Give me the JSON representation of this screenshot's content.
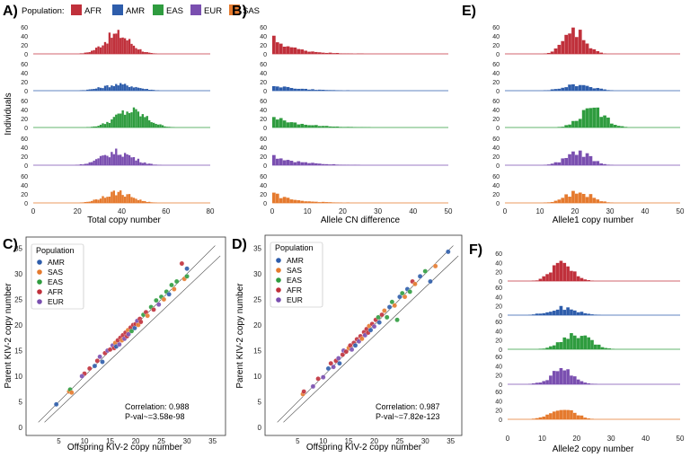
{
  "colors": {
    "AFR": "#c0303b",
    "AMR": "#2e5dab",
    "EAS": "#2f9c3f",
    "EUR": "#7a4fb0",
    "SAS": "#e57a2e"
  },
  "legend": {
    "title": "Population:",
    "items": [
      "AFR",
      "AMR",
      "EAS",
      "EUR",
      "SAS"
    ]
  },
  "scatter_legend_titles": {
    "C": "Population",
    "D": "Population"
  },
  "chart_data": [
    {
      "panel": "A",
      "label": "A)",
      "type": "histogram-stack",
      "xlabel": "Total copy number",
      "ylabel": "Individuals",
      "xlim": [
        0,
        80
      ],
      "xticks": [
        0,
        20,
        40,
        60,
        80
      ],
      "ylim": [
        0,
        60
      ],
      "yticks": [
        0,
        20,
        40,
        60
      ],
      "series": [
        {
          "name": "AFR",
          "center": 38,
          "sd": 6,
          "peak": 45
        },
        {
          "name": "AMR",
          "center": 39,
          "sd": 7.5,
          "peak": 14
        },
        {
          "name": "EAS",
          "center": 44,
          "sd": 7,
          "peak": 38
        },
        {
          "name": "EUR",
          "center": 38,
          "sd": 7,
          "peak": 30
        },
        {
          "name": "SAS",
          "center": 38,
          "sd": 6.5,
          "peak": 24
        }
      ]
    },
    {
      "panel": "B",
      "label": "B)",
      "type": "histogram-stack",
      "xlabel": "Allele CN difference",
      "ylabel": "",
      "xlim": [
        0,
        50
      ],
      "xticks": [
        0,
        10,
        20,
        30,
        40,
        50
      ],
      "ylim": [
        0,
        60
      ],
      "yticks": [
        0,
        20,
        40,
        60
      ],
      "series": [
        {
          "name": "AFR",
          "decay": 6,
          "peak": 38
        },
        {
          "name": "AMR",
          "decay": 7,
          "peak": 14
        },
        {
          "name": "EAS",
          "decay": 7,
          "peak": 28
        },
        {
          "name": "EUR",
          "decay": 7,
          "peak": 24
        },
        {
          "name": "SAS",
          "decay": 6,
          "peak": 22
        }
      ]
    },
    {
      "panel": "E",
      "label": "E)",
      "type": "histogram-stack",
      "xlabel": "Allele1 copy number",
      "ylabel": "",
      "xlim": [
        0,
        50
      ],
      "xticks": [
        0,
        10,
        20,
        30,
        40,
        50
      ],
      "ylim": [
        0,
        60
      ],
      "yticks": [
        0,
        20,
        40,
        60
      ],
      "series": [
        {
          "name": "AFR",
          "center": 20,
          "sd": 3,
          "peak": 55
        },
        {
          "name": "AMR",
          "center": 21,
          "sd": 4,
          "peak": 14
        },
        {
          "name": "EAS",
          "center": 25,
          "sd": 3.5,
          "peak": 45
        },
        {
          "name": "EUR",
          "center": 21,
          "sd": 3.5,
          "peak": 30
        },
        {
          "name": "SAS",
          "center": 21,
          "sd": 3.5,
          "peak": 26
        }
      ]
    },
    {
      "panel": "F",
      "label": "F)",
      "type": "histogram-stack",
      "xlabel": "Allele2 copy number",
      "ylabel": "",
      "xlim": [
        0,
        50
      ],
      "xticks": [
        0,
        10,
        20,
        30,
        40,
        50
      ],
      "ylim": [
        0,
        60
      ],
      "yticks": [
        0,
        20,
        40,
        60
      ],
      "series": [
        {
          "name": "AFR",
          "center": 16,
          "sd": 3,
          "peak": 45
        },
        {
          "name": "AMR",
          "center": 16,
          "sd": 4,
          "peak": 16
        },
        {
          "name": "EAS",
          "center": 20,
          "sd": 4,
          "peak": 32
        },
        {
          "name": "EUR",
          "center": 16,
          "sd": 3.5,
          "peak": 30
        },
        {
          "name": "SAS",
          "center": 16,
          "sd": 3.5,
          "peak": 24
        }
      ]
    },
    {
      "panel": "C",
      "label": "C)",
      "type": "scatter",
      "xlabel": "Offspring KIV-2 copy number",
      "ylabel": "Parent KIV-2 copy number",
      "xlim": [
        0,
        37
      ],
      "ylim": [
        0,
        37
      ],
      "xticks": [
        5,
        10,
        15,
        20,
        25,
        30,
        35
      ],
      "yticks": [
        0,
        5,
        10,
        15,
        20,
        25,
        30,
        35
      ],
      "correlation": "Correlation: 0.988",
      "pvalue": "P-val~=3.58e-98",
      "legend_order": [
        "AMR",
        "SAS",
        "EAS",
        "AFR",
        "EUR"
      ],
      "points": [
        {
          "pop": "AMR",
          "x": 4.5,
          "y": 4.5
        },
        {
          "pop": "SAS",
          "x": 7,
          "y": 7
        },
        {
          "pop": "EAS",
          "x": 7.2,
          "y": 7.4
        },
        {
          "pop": "SAS",
          "x": 7.5,
          "y": 6.8
        },
        {
          "pop": "AFR",
          "x": 10,
          "y": 10.5
        },
        {
          "pop": "EUR",
          "x": 9.5,
          "y": 10
        },
        {
          "pop": "AFR",
          "x": 11,
          "y": 11.5
        },
        {
          "pop": "AMR",
          "x": 12,
          "y": 12
        },
        {
          "pop": "AFR",
          "x": 12.5,
          "y": 13
        },
        {
          "pop": "EUR",
          "x": 13,
          "y": 13.8
        },
        {
          "pop": "AMR",
          "x": 13.5,
          "y": 12.8
        },
        {
          "pop": "AFR",
          "x": 14,
          "y": 14.5
        },
        {
          "pop": "EUR",
          "x": 14.5,
          "y": 15
        },
        {
          "pop": "AFR",
          "x": 15,
          "y": 15.2
        },
        {
          "pop": "EUR",
          "x": 15.5,
          "y": 16
        },
        {
          "pop": "AFR",
          "x": 15.8,
          "y": 15.5
        },
        {
          "pop": "SAS",
          "x": 16,
          "y": 16.5
        },
        {
          "pop": "AMR",
          "x": 16.2,
          "y": 15.8
        },
        {
          "pop": "AFR",
          "x": 16.5,
          "y": 17
        },
        {
          "pop": "EUR",
          "x": 16.8,
          "y": 16.2
        },
        {
          "pop": "AFR",
          "x": 17,
          "y": 17.5
        },
        {
          "pop": "SAS",
          "x": 17.3,
          "y": 17
        },
        {
          "pop": "AFR",
          "x": 17.5,
          "y": 18
        },
        {
          "pop": "EUR",
          "x": 17.8,
          "y": 17.3
        },
        {
          "pop": "AFR",
          "x": 18,
          "y": 18.5
        },
        {
          "pop": "AFR",
          "x": 18.3,
          "y": 17.8
        },
        {
          "pop": "SAS",
          "x": 18.5,
          "y": 19
        },
        {
          "pop": "EUR",
          "x": 18.6,
          "y": 18.2
        },
        {
          "pop": "AFR",
          "x": 19,
          "y": 19.5
        },
        {
          "pop": "EAS",
          "x": 19.2,
          "y": 18.8
        },
        {
          "pop": "AFR",
          "x": 19.5,
          "y": 20
        },
        {
          "pop": "AMR",
          "x": 19.8,
          "y": 19.4
        },
        {
          "pop": "AFR",
          "x": 20,
          "y": 20.2
        },
        {
          "pop": "EUR",
          "x": 20.3,
          "y": 20.8
        },
        {
          "pop": "SAS",
          "x": 20.5,
          "y": 20
        },
        {
          "pop": "AFR",
          "x": 20.8,
          "y": 21.2
        },
        {
          "pop": "AFR",
          "x": 21,
          "y": 20.6
        },
        {
          "pop": "EAS",
          "x": 21.5,
          "y": 22
        },
        {
          "pop": "AFR",
          "x": 22,
          "y": 22.5
        },
        {
          "pop": "SAS",
          "x": 22.3,
          "y": 21.8
        },
        {
          "pop": "EAS",
          "x": 23,
          "y": 23.5
        },
        {
          "pop": "AFR",
          "x": 23.5,
          "y": 23
        },
        {
          "pop": "EAS",
          "x": 24,
          "y": 24.8
        },
        {
          "pop": "EUR",
          "x": 24.5,
          "y": 24
        },
        {
          "pop": "EAS",
          "x": 25,
          "y": 25.5
        },
        {
          "pop": "SAS",
          "x": 25.5,
          "y": 25
        },
        {
          "pop": "EAS",
          "x": 26,
          "y": 26.5
        },
        {
          "pop": "AMR",
          "x": 26.5,
          "y": 26
        },
        {
          "pop": "EAS",
          "x": 27,
          "y": 27.8
        },
        {
          "pop": "SAS",
          "x": 27.5,
          "y": 27
        },
        {
          "pop": "EAS",
          "x": 28,
          "y": 28.5
        },
        {
          "pop": "AFR",
          "x": 29,
          "y": 32
        },
        {
          "pop": "SAS",
          "x": 29.5,
          "y": 29
        },
        {
          "pop": "EAS",
          "x": 30,
          "y": 29.5
        },
        {
          "pop": "AMR",
          "x": 30,
          "y": 31
        }
      ]
    },
    {
      "panel": "D",
      "label": "D)",
      "type": "scatter",
      "xlabel": "Offspring KIV-2 copy number",
      "ylabel": "Parent KIV-2 copy number",
      "xlim": [
        0,
        37
      ],
      "ylim": [
        0,
        37
      ],
      "xticks": [
        5,
        10,
        15,
        20,
        25,
        30,
        35
      ],
      "yticks": [
        0,
        5,
        10,
        15,
        20,
        25,
        30,
        35
      ],
      "correlation": "Correlation: 0.987",
      "pvalue": "P-val~=7.82e-123",
      "legend_order": [
        "AMR",
        "SAS",
        "EAS",
        "AFR",
        "EUR"
      ],
      "points": [
        {
          "pop": "SAS",
          "x": 6,
          "y": 6.5
        },
        {
          "pop": "AFR",
          "x": 6.2,
          "y": 7
        },
        {
          "pop": "EUR",
          "x": 8,
          "y": 8
        },
        {
          "pop": "AFR",
          "x": 9,
          "y": 9.5
        },
        {
          "pop": "EUR",
          "x": 10,
          "y": 9.8
        },
        {
          "pop": "AMR",
          "x": 11,
          "y": 11.5
        },
        {
          "pop": "AFR",
          "x": 11.5,
          "y": 12.5
        },
        {
          "pop": "EUR",
          "x": 12,
          "y": 11.8
        },
        {
          "pop": "AFR",
          "x": 12.5,
          "y": 13
        },
        {
          "pop": "EUR",
          "x": 13,
          "y": 13.5
        },
        {
          "pop": "AMR",
          "x": 13.2,
          "y": 12.5
        },
        {
          "pop": "AFR",
          "x": 13.8,
          "y": 14.2
        },
        {
          "pop": "EUR",
          "x": 14,
          "y": 15
        },
        {
          "pop": "AFR",
          "x": 14.5,
          "y": 14.8
        },
        {
          "pop": "SAS",
          "x": 15,
          "y": 15.5
        },
        {
          "pop": "AFR",
          "x": 15.3,
          "y": 16
        },
        {
          "pop": "EUR",
          "x": 15.6,
          "y": 15.2
        },
        {
          "pop": "AFR",
          "x": 16,
          "y": 16.5
        },
        {
          "pop": "AMR",
          "x": 16.3,
          "y": 16
        },
        {
          "pop": "AFR",
          "x": 16.6,
          "y": 17.2
        },
        {
          "pop": "EUR",
          "x": 17,
          "y": 16.8
        },
        {
          "pop": "AFR",
          "x": 17.3,
          "y": 17.8
        },
        {
          "pop": "SAS",
          "x": 17.6,
          "y": 17.3
        },
        {
          "pop": "AFR",
          "x": 18,
          "y": 18.6
        },
        {
          "pop": "EUR",
          "x": 18.2,
          "y": 18
        },
        {
          "pop": "AFR",
          "x": 18.5,
          "y": 19.2
        },
        {
          "pop": "AFR",
          "x": 18.8,
          "y": 18.5
        },
        {
          "pop": "SAS",
          "x": 19,
          "y": 19.8
        },
        {
          "pop": "AMR",
          "x": 19.3,
          "y": 19
        },
        {
          "pop": "AFR",
          "x": 19.6,
          "y": 20.2
        },
        {
          "pop": "EUR",
          "x": 20,
          "y": 19.7
        },
        {
          "pop": "AFR",
          "x": 20.3,
          "y": 21
        },
        {
          "pop": "EAS",
          "x": 20.8,
          "y": 21.5
        },
        {
          "pop": "AMR",
          "x": 21,
          "y": 20.5
        },
        {
          "pop": "AFR",
          "x": 21.5,
          "y": 22
        },
        {
          "pop": "SAS",
          "x": 22,
          "y": 22.8
        },
        {
          "pop": "EAS",
          "x": 22.5,
          "y": 21.5
        },
        {
          "pop": "AMR",
          "x": 23,
          "y": 23.5
        },
        {
          "pop": "EAS",
          "x": 23.5,
          "y": 24.5
        },
        {
          "pop": "SAS",
          "x": 24,
          "y": 23.8
        },
        {
          "pop": "EAS",
          "x": 24.5,
          "y": 21
        },
        {
          "pop": "AMR",
          "x": 25,
          "y": 25.5
        },
        {
          "pop": "EAS",
          "x": 25.5,
          "y": 26.2
        },
        {
          "pop": "SAS",
          "x": 26,
          "y": 25.5
        },
        {
          "pop": "AMR",
          "x": 26.5,
          "y": 27
        },
        {
          "pop": "EAS",
          "x": 27,
          "y": 26.5
        },
        {
          "pop": "AFR",
          "x": 27.5,
          "y": 28.5
        },
        {
          "pop": "SAS",
          "x": 28,
          "y": 28
        },
        {
          "pop": "AMR",
          "x": 29,
          "y": 29.5
        },
        {
          "pop": "EAS",
          "x": 30,
          "y": 30.5
        },
        {
          "pop": "AMR",
          "x": 31,
          "y": 28.5
        },
        {
          "pop": "SAS",
          "x": 32,
          "y": 31.5
        },
        {
          "pop": "AMR",
          "x": 34.5,
          "y": 34.3
        }
      ]
    }
  ]
}
